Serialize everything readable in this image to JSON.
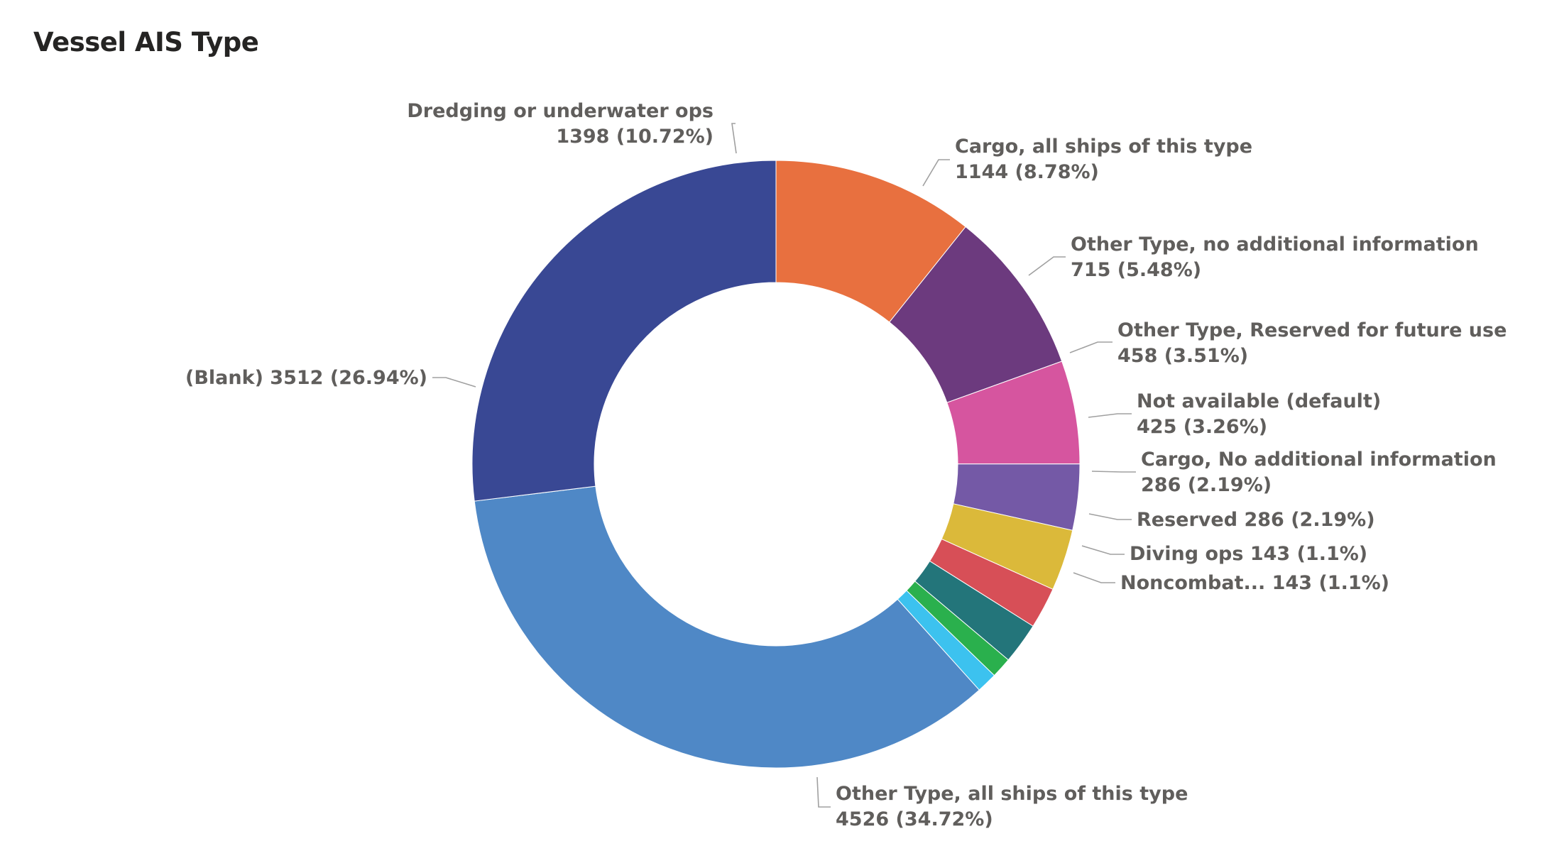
{
  "chart_data": {
    "type": "pie",
    "title": "Vessel AIS Type",
    "donut": true,
    "legend": "none",
    "slices": [
      {
        "label": "Dredging or underwater ops",
        "value": 1398,
        "percent": "10.72%",
        "color": "#e8703f"
      },
      {
        "label": "Cargo, all ships of this type",
        "value": 1144,
        "percent": "8.78%",
        "color": "#6c3a7e"
      },
      {
        "label": "Other Type, no additional information",
        "value": 715,
        "percent": "5.48%",
        "color": "#d6559f"
      },
      {
        "label": "Other Type, Reserved for future use",
        "value": 458,
        "percent": "3.51%",
        "color": "#7459a6"
      },
      {
        "label": "Not available (default)",
        "value": 425,
        "percent": "3.26%",
        "color": "#dbb93a"
      },
      {
        "label": "Cargo, No additional information",
        "value": 286,
        "percent": "2.19%",
        "color": "#d74f57"
      },
      {
        "label": "Reserved",
        "value": 286,
        "percent": "2.19%",
        "color": "#23757a"
      },
      {
        "label": "Diving ops",
        "value": 143,
        "percent": "1.1%",
        "color": "#2ab04d"
      },
      {
        "label": "Noncombat...",
        "value": 143,
        "percent": "1.1%",
        "color": "#3cc2ef"
      },
      {
        "label": "Other Type, all ships of this type",
        "value": 4526,
        "percent": "34.72%",
        "color": "#4f88c6"
      },
      {
        "label": "(Blank)",
        "value": 3512,
        "percent": "26.94%",
        "color": "#394894"
      }
    ]
  }
}
